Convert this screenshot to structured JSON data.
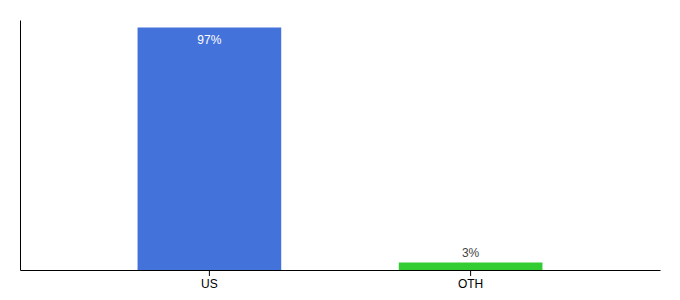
{
  "chart_data": {
    "type": "bar",
    "categories": [
      "US",
      "OTH"
    ],
    "values": [
      97,
      3
    ],
    "value_labels": [
      "97%",
      "3%"
    ],
    "colors": [
      "#4472db",
      "#33cc33"
    ],
    "ylim": [
      0,
      100
    ],
    "data_labels": true,
    "tick_labels": "x"
  }
}
